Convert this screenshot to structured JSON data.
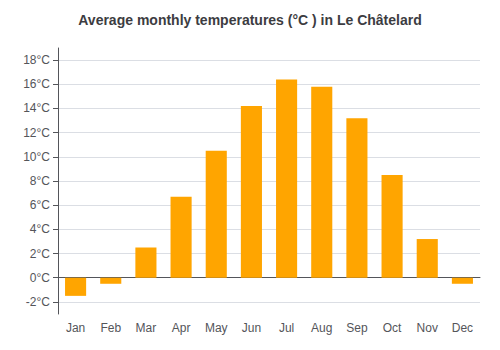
{
  "chart_data": {
    "type": "bar",
    "title": "Average monthly temperatures (°C ) in Le Châtelard",
    "categories": [
      "Jan",
      "Feb",
      "Mar",
      "Apr",
      "May",
      "Jun",
      "Jul",
      "Aug",
      "Sep",
      "Oct",
      "Nov",
      "Dec"
    ],
    "values": [
      -1.5,
      -0.5,
      2.5,
      6.7,
      10.5,
      14.2,
      16.4,
      15.8,
      13.2,
      8.5,
      3.2,
      -0.5
    ],
    "color": "#FFA500",
    "ylim": [
      -3,
      19
    ],
    "yticks": [
      {
        "value": -2,
        "label": "-2°C"
      },
      {
        "value": 0,
        "label": "0°C"
      },
      {
        "value": 2,
        "label": "2°C"
      },
      {
        "value": 4,
        "label": "4°C"
      },
      {
        "value": 6,
        "label": "6°C"
      },
      {
        "value": 8,
        "label": "8°C"
      },
      {
        "value": 10,
        "label": "10°C"
      },
      {
        "value": 12,
        "label": "12°C"
      },
      {
        "value": 14,
        "label": "14°C"
      },
      {
        "value": 16,
        "label": "16°C"
      },
      {
        "value": 18,
        "label": "18°C"
      }
    ],
    "grid": true
  }
}
